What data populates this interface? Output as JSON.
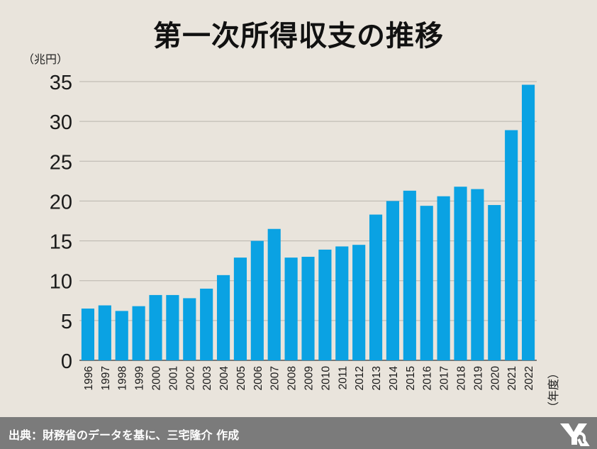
{
  "title": "第一次所得収支の推移",
  "unit_label": "（兆円）",
  "xaxis_unit_label": "（年度）",
  "source": "出典：財務省のデータを基に、三宅隆介 作成",
  "colors": {
    "bar": "#0aa2e3",
    "background": "#e9e4dc",
    "footer": "#7b7b7b"
  },
  "chart_data": {
    "type": "bar",
    "title": "第一次所得収支の推移",
    "xlabel": "（年度）",
    "ylabel": "（兆円）",
    "ylim": [
      0,
      35
    ],
    "yticks": [
      0,
      5,
      10,
      15,
      20,
      25,
      30,
      35
    ],
    "grid": true,
    "categories": [
      "1996",
      "1997",
      "1998",
      "1999",
      "2000",
      "2001",
      "2002",
      "2003",
      "2004",
      "2005",
      "2006",
      "2007",
      "2008",
      "2009",
      "2010",
      "2011",
      "2012",
      "2013",
      "2014",
      "2015",
      "2016",
      "2017",
      "2018",
      "2019",
      "2020",
      "2021",
      "2022"
    ],
    "values": [
      6.5,
      6.9,
      6.2,
      6.8,
      8.2,
      8.2,
      7.8,
      9.0,
      10.7,
      12.9,
      15.0,
      16.5,
      12.9,
      13.0,
      13.9,
      14.3,
      14.5,
      18.3,
      20.0,
      21.3,
      19.4,
      20.6,
      21.8,
      21.5,
      19.5,
      28.9,
      34.6
    ]
  }
}
